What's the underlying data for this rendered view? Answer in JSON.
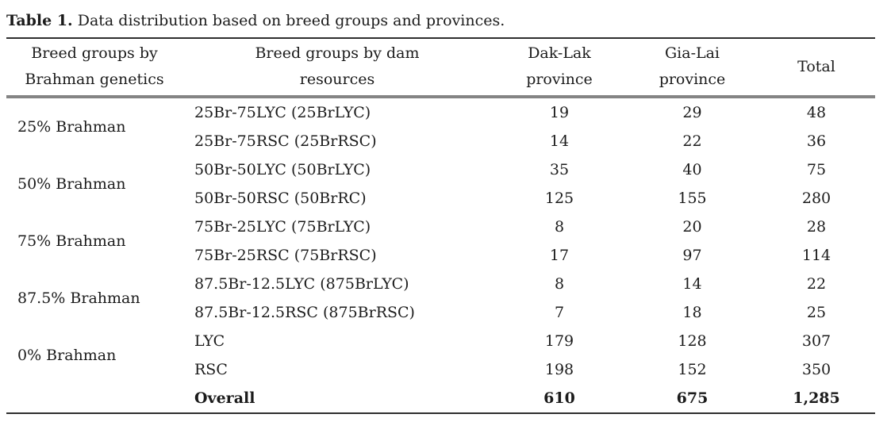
{
  "title": {
    "label": "Table 1.",
    "text": " Data distribution based on breed groups and provinces."
  },
  "headers": {
    "genetics": {
      "line1": "Breed groups by",
      "line2": "Brahman genetics"
    },
    "dam": {
      "line1": "Breed groups by dam",
      "line2": "resources"
    },
    "dak_lak": {
      "line1": "Dak-Lak",
      "line2": "province"
    },
    "gia_lai": {
      "line1": "Gia-Lai",
      "line2": "province"
    },
    "total": {
      "line1": "Total",
      "line2": ""
    }
  },
  "groups": [
    {
      "genetics": "25% Brahman",
      "rows": [
        {
          "dam": "25Br-75LYC (25BrLYC)",
          "dak_lak": "19",
          "gia_lai": "29",
          "total": "48"
        },
        {
          "dam": "25Br-75RSC (25BrRSC)",
          "dak_lak": "14",
          "gia_lai": "22",
          "total": "36"
        }
      ]
    },
    {
      "genetics": "50% Brahman",
      "rows": [
        {
          "dam": "50Br-50LYC (50BrLYC)",
          "dak_lak": "35",
          "gia_lai": "40",
          "total": "75"
        },
        {
          "dam": "50Br-50RSC (50BrRC)",
          "dak_lak": "125",
          "gia_lai": "155",
          "total": "280"
        }
      ]
    },
    {
      "genetics": "75% Brahman",
      "rows": [
        {
          "dam": "75Br-25LYC (75BrLYC)",
          "dak_lak": "8",
          "gia_lai": "20",
          "total": "28"
        },
        {
          "dam": "75Br-25RSC (75BrRSC)",
          "dak_lak": "17",
          "gia_lai": "97",
          "total": "114"
        }
      ]
    },
    {
      "genetics": "87.5% Brahman",
      "rows": [
        {
          "dam": "87.5Br-12.5LYC (875BrLYC)",
          "dak_lak": "8",
          "gia_lai": "14",
          "total": "22"
        },
        {
          "dam": "87.5Br-12.5RSC (875BrRSC)",
          "dak_lak": "7",
          "gia_lai": "18",
          "total": "25"
        }
      ]
    },
    {
      "genetics": "0% Brahman",
      "rows": [
        {
          "dam": "LYC",
          "dak_lak": "179",
          "gia_lai": "128",
          "total": "307"
        },
        {
          "dam": "RSC",
          "dak_lak": "198",
          "gia_lai": "152",
          "total": "350"
        }
      ]
    }
  ],
  "overall": {
    "label": "Overall",
    "dak_lak": "610",
    "gia_lai": "675",
    "total": "1,285"
  },
  "colors": {
    "text": "#1b1b1b",
    "rule_dark": "#2e2e2e",
    "rule_gray": "#848484",
    "background": "#ffffff"
  }
}
